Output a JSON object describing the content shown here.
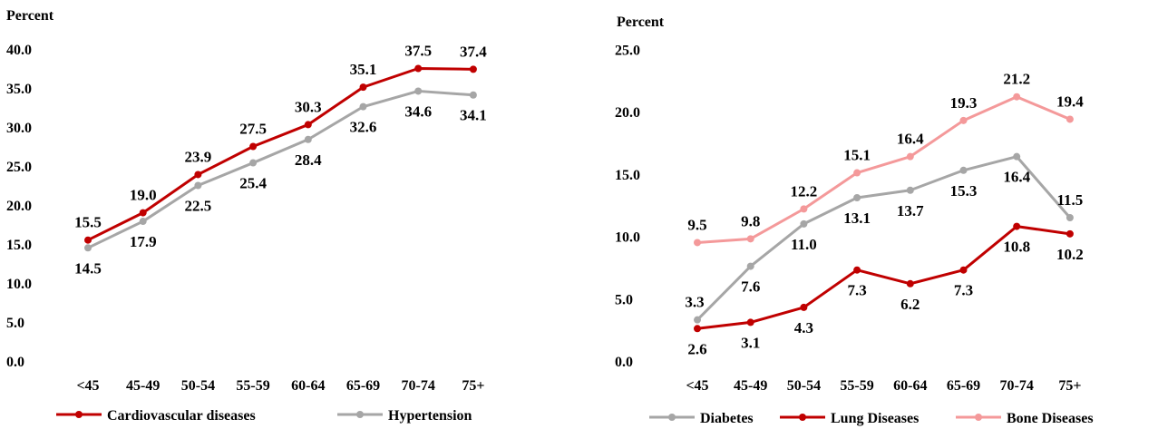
{
  "chart_data": [
    {
      "type": "line",
      "ylabel": "Percent",
      "ylim": [
        0,
        40
      ],
      "yticks": [
        "0.0",
        "5.0",
        "10.0",
        "15.0",
        "20.0",
        "25.0",
        "30.0",
        "35.0",
        "40.0"
      ],
      "categories": [
        "<45",
        "45-49",
        "50-54",
        "55-59",
        "60-64",
        "65-69",
        "70-74",
        "75+"
      ],
      "grid": false,
      "legend_position": "bottom",
      "series": [
        {
          "name": "Cardiovascular diseases",
          "color": "#c00000",
          "values": [
            15.5,
            19.0,
            23.9,
            27.5,
            30.3,
            35.1,
            37.5,
            37.4
          ],
          "labels": [
            "15.5",
            "19.0",
            "23.9",
            "27.5",
            "30.3",
            "35.1",
            "37.5",
            "37.4"
          ]
        },
        {
          "name": "Hypertension",
          "color": "#a6a6a6",
          "values": [
            14.5,
            17.9,
            22.5,
            25.4,
            28.4,
            32.6,
            34.6,
            34.1
          ],
          "labels": [
            "14.5",
            "17.9",
            "22.5",
            "25.4",
            "28.4",
            "32.6",
            "34.6",
            "34.1"
          ]
        }
      ]
    },
    {
      "type": "line",
      "ylabel": "Percent",
      "ylim": [
        0,
        25
      ],
      "yticks": [
        "0.0",
        "5.0",
        "10.0",
        "15.0",
        "20.0",
        "25.0"
      ],
      "categories": [
        "<45",
        "45-49",
        "50-54",
        "55-59",
        "60-64",
        "65-69",
        "70-74",
        "75+"
      ],
      "grid": false,
      "legend_position": "bottom",
      "series": [
        {
          "name": "Diabetes",
          "color": "#a6a6a6",
          "values": [
            3.3,
            7.6,
            11.0,
            13.1,
            13.7,
            15.3,
            16.4,
            11.5
          ],
          "labels": [
            "3.3",
            "7.6",
            "11.0",
            "13.1",
            "13.7",
            "15.3",
            "16.4",
            "11.5"
          ]
        },
        {
          "name": "Lung Diseases",
          "color": "#c00000",
          "values": [
            2.6,
            3.1,
            4.3,
            7.3,
            6.2,
            7.3,
            10.8,
            10.2
          ],
          "labels": [
            "2.6",
            "3.1",
            "4.3",
            "7.3",
            "6.2",
            "7.3",
            "10.8",
            "10.2"
          ]
        },
        {
          "name": "Bone Diseases",
          "color": "#f4999a",
          "values": [
            9.5,
            9.8,
            12.2,
            15.1,
            16.4,
            19.3,
            21.2,
            19.4
          ],
          "labels": [
            "9.5",
            "9.8",
            "12.2",
            "15.1",
            "16.4",
            "19.3",
            "21.2",
            "19.4"
          ]
        }
      ]
    }
  ]
}
